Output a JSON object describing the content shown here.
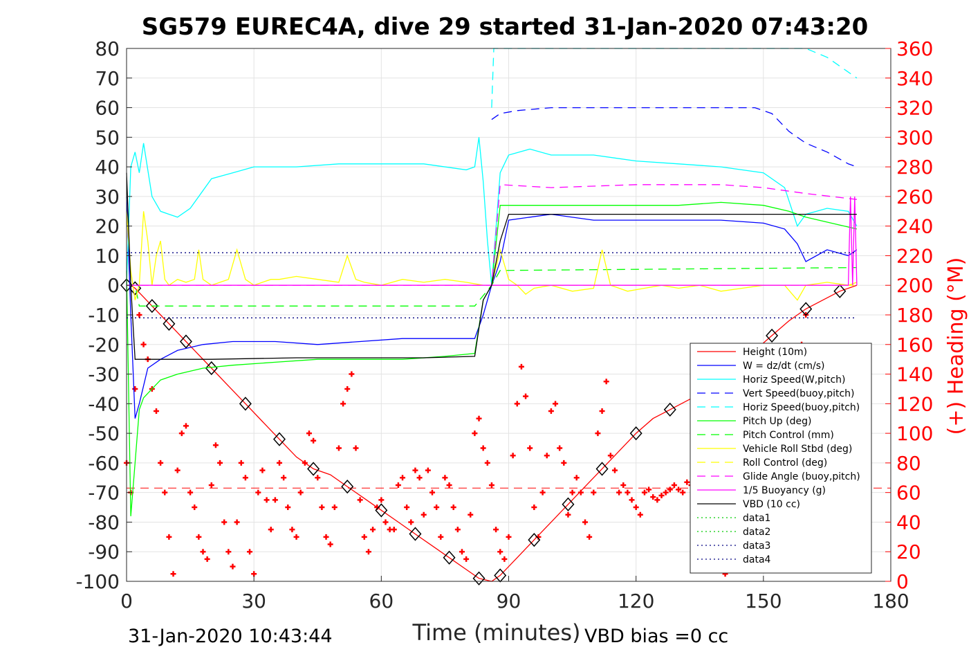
{
  "chart_data": {
    "type": "line",
    "title": "SG579 EUREC4A, dive 29 started 31-Jan-2020 07:43:20",
    "xlabel": "Time (minutes)",
    "ylabel": "",
    "y2label": "(+) Heading (°M)",
    "xlim": [
      0,
      180
    ],
    "ylim": [
      -100,
      80
    ],
    "y2lim": [
      0,
      360
    ],
    "xticks": [
      "0",
      "30",
      "60",
      "90",
      "120",
      "150",
      "180"
    ],
    "yticks": [
      "80",
      "70",
      "60",
      "50",
      "40",
      "30",
      "20",
      "10",
      "0",
      "-10",
      "-20",
      "-30",
      "-40",
      "-50",
      "-60",
      "-70",
      "-80",
      "-90",
      "-100"
    ],
    "y2ticks": [
      "360",
      "340",
      "320",
      "300",
      "280",
      "260",
      "240",
      "220",
      "200",
      "180",
      "160",
      "140",
      "120",
      "100",
      "80",
      "60",
      "40",
      "20",
      "0"
    ],
    "grid": true,
    "legend_position": "lower-right",
    "footer_left": "31-Jan-2020 10:43:44",
    "footer_right": "VBD bias =0 cc",
    "colors": {
      "height": "#ff0000",
      "w": "#0000ff",
      "horiz_speed": "#00ffff",
      "pitch": "#00ff00",
      "roll": "#ffff00",
      "glide": "#ff00ff",
      "vbd": "#000000",
      "heading": "#ff0000",
      "data3": "#000080"
    },
    "series": [
      {
        "name": "Height (10m)",
        "color": "#ff0000",
        "style": "solid",
        "marker": "diamond",
        "x": [
          0,
          1,
          2,
          4,
          6,
          8,
          10,
          12,
          14,
          16,
          20,
          24,
          28,
          32,
          36,
          40,
          44,
          48,
          52,
          56,
          60,
          64,
          68,
          72,
          76,
          80,
          83,
          86,
          88,
          92,
          96,
          100,
          104,
          108,
          112,
          116,
          120,
          124,
          128,
          132,
          136,
          140,
          144,
          148,
          152,
          156,
          160,
          164,
          168,
          172
        ],
        "y": [
          0,
          0,
          -1,
          -4,
          -7,
          -10,
          -13,
          -16,
          -19,
          -22,
          -28,
          -34,
          -40,
          -46,
          -52,
          -58,
          -62,
          -64,
          -68,
          -72,
          -76,
          -80,
          -84,
          -88,
          -92,
          -96,
          -99,
          -100,
          -98,
          -92,
          -86,
          -80,
          -74,
          -68,
          -62,
          -56,
          -50,
          -45,
          -42,
          -39,
          -36,
          -32,
          -27,
          -22,
          -17,
          -12,
          -8,
          -5,
          -2,
          0
        ]
      },
      {
        "name": "W = dz/dt (cm/s)",
        "color": "#0000ff",
        "style": "solid",
        "x": [
          0,
          1,
          2,
          3,
          5,
          8,
          12,
          18,
          25,
          35,
          45,
          55,
          65,
          75,
          82,
          84,
          86,
          88,
          90,
          95,
          100,
          110,
          120,
          130,
          140,
          150,
          155,
          158,
          160,
          165,
          170,
          172
        ],
        "y": [
          30,
          -10,
          -45,
          -40,
          -28,
          -25,
          -22,
          -20,
          -19,
          -19,
          -20,
          -19,
          -18,
          -18,
          -18,
          -10,
          0,
          8,
          22,
          23,
          24,
          22,
          22,
          22,
          22,
          21,
          19,
          14,
          8,
          12,
          10,
          12
        ]
      },
      {
        "name": "Horiz Speed(W,pitch)",
        "color": "#00ffff",
        "style": "solid",
        "x": [
          0,
          1,
          2,
          3,
          4,
          6,
          8,
          10,
          12,
          15,
          20,
          25,
          30,
          40,
          50,
          60,
          70,
          80,
          82,
          83,
          84,
          85,
          86,
          88,
          90,
          95,
          100,
          110,
          120,
          130,
          140,
          150,
          155,
          158,
          160,
          165,
          170,
          172
        ],
        "y": [
          0,
          40,
          45,
          38,
          48,
          30,
          25,
          24,
          23,
          26,
          36,
          38,
          40,
          40,
          41,
          41,
          41,
          39,
          40,
          50,
          35,
          15,
          0,
          38,
          44,
          46,
          44,
          44,
          42,
          41,
          40,
          38,
          33,
          20,
          24,
          26,
          25,
          20
        ]
      },
      {
        "name": "Vert Speed(buoy,pitch)",
        "color": "#0000ff",
        "style": "dashed",
        "x": [
          86,
          88,
          92,
          100,
          110,
          120,
          130,
          140,
          148,
          152,
          156,
          160,
          165,
          170,
          172
        ],
        "y": [
          56,
          58,
          59,
          60,
          60,
          60,
          60,
          60,
          60,
          58,
          52,
          48,
          45,
          41,
          40
        ]
      },
      {
        "name": "Horiz Speed(buoy,pitch)",
        "color": "#00ffff",
        "style": "dashed",
        "x": [
          86,
          86.5,
          87,
          160,
          165,
          170,
          172
        ],
        "y": [
          60,
          80,
          80,
          80,
          77,
          72,
          70
        ]
      },
      {
        "name": "Pitch Up (deg)",
        "color": "#00ff00",
        "style": "solid",
        "x": [
          0,
          1,
          2,
          3,
          4,
          6,
          8,
          12,
          18,
          25,
          35,
          45,
          55,
          65,
          75,
          82,
          84,
          86,
          88,
          92,
          100,
          110,
          120,
          130,
          140,
          150,
          156,
          160,
          166,
          172
        ],
        "y": [
          5,
          -78,
          -60,
          -42,
          -38,
          -35,
          -32,
          -30,
          -28,
          -27,
          -26,
          -25,
          -25,
          -25,
          -24,
          -23,
          -5,
          0,
          27,
          27,
          27,
          27,
          27,
          27,
          28,
          27,
          25,
          23,
          21,
          19
        ]
      },
      {
        "name": "Pitch Control (mm)",
        "color": "#00ff00",
        "style": "dashed",
        "x": [
          0,
          2,
          3,
          82,
          86,
          88,
          172
        ],
        "y": [
          0,
          0,
          -7,
          -7,
          0,
          5,
          6
        ]
      },
      {
        "name": "Vehicle Roll Stbd (deg)",
        "color": "#ffff00",
        "style": "solid",
        "x": [
          0,
          1,
          2,
          3,
          4,
          5,
          6,
          7,
          8,
          9,
          10,
          12,
          14,
          16,
          17,
          18,
          20,
          22,
          24,
          26,
          28,
          30,
          32,
          34,
          36,
          40,
          45,
          50,
          52,
          54,
          56,
          60,
          65,
          70,
          75,
          80,
          84,
          86,
          88,
          90,
          92,
          94,
          96,
          100,
          105,
          110,
          112,
          114,
          118,
          122,
          126,
          130,
          135,
          140,
          145,
          150,
          155,
          158,
          160,
          165,
          170,
          172
        ],
        "y": [
          25,
          5,
          -5,
          0,
          25,
          15,
          0,
          10,
          15,
          2,
          0,
          2,
          1,
          2,
          12,
          2,
          0,
          1,
          2,
          12,
          2,
          0,
          1,
          2,
          2,
          3,
          2,
          1,
          10,
          2,
          1,
          0,
          2,
          1,
          2,
          1,
          0,
          0,
          12,
          2,
          0,
          -3,
          -1,
          0,
          -2,
          -1,
          12,
          0,
          -2,
          -1,
          0,
          -1,
          0,
          -2,
          -1,
          0,
          0,
          -5,
          0,
          1,
          0,
          1
        ]
      },
      {
        "name": "Roll Control (deg)",
        "color": "#ffff00",
        "style": "dashed",
        "x": [
          0,
          172
        ],
        "y": [
          0,
          0
        ]
      },
      {
        "name": "Glide Angle (buoy,pitch)",
        "color": "#ff00ff",
        "style": "dashed",
        "x": [
          0,
          2,
          3,
          82,
          86,
          88,
          100,
          120,
          140,
          150,
          160,
          172
        ],
        "y": [
          0,
          0,
          0,
          0,
          0,
          34,
          33,
          34,
          34,
          33,
          31,
          29
        ]
      },
      {
        "name": "1/5 Buoyancy (g)",
        "color": "#ff00ff",
        "style": "solid",
        "x": [
          0,
          2,
          3,
          82,
          86,
          88,
          170,
          170.5,
          171,
          171.5,
          172
        ],
        "y": [
          0,
          0,
          0,
          0,
          0,
          0,
          0,
          30,
          0,
          30,
          0
        ]
      },
      {
        "name": "VBD (10 cc)",
        "color": "#000000",
        "style": "solid",
        "x": [
          0,
          1,
          2,
          3,
          5,
          10,
          20,
          40,
          60,
          70,
          82,
          84,
          86,
          88,
          90,
          172
        ],
        "y": [
          38,
          0,
          -25,
          -25,
          -25,
          -25,
          -25,
          -24.5,
          -24.5,
          -24.5,
          -24,
          -5,
          0,
          15,
          24,
          24
        ]
      },
      {
        "name": "data1",
        "color": "#00cc00",
        "style": "dotted",
        "x": [],
        "y": []
      },
      {
        "name": "data2",
        "color": "#00cc00",
        "style": "dotted",
        "x": [],
        "y": []
      },
      {
        "name": "data3",
        "color": "#000080",
        "style": "dotted",
        "x": [
          0,
          172
        ],
        "y": [
          11,
          11
        ]
      },
      {
        "name": "data4",
        "color": "#000080",
        "style": "dotted",
        "x": [
          0,
          172
        ],
        "y": [
          -11,
          -11
        ]
      }
    ],
    "extra_series": [
      {
        "name": "Heading",
        "color": "#ff0000",
        "style": "markers",
        "marker": "plus",
        "axis": "right",
        "x": [
          0,
          1,
          2,
          3,
          4,
          5,
          6,
          7,
          8,
          9,
          10,
          11,
          12,
          13,
          14,
          15,
          16,
          17,
          18,
          19,
          20,
          21,
          22,
          23,
          24,
          25,
          26,
          27,
          28,
          29,
          30,
          31,
          32,
          33,
          34,
          35,
          36,
          37,
          38,
          39,
          40,
          41,
          42,
          43,
          44,
          45,
          46,
          47,
          48,
          49,
          50,
          51,
          52,
          53,
          54,
          55,
          56,
          57,
          58,
          59,
          60,
          61,
          62,
          63,
          64,
          65,
          66,
          67,
          68,
          69,
          70,
          71,
          72,
          73,
          74,
          75,
          76,
          77,
          78,
          79,
          80,
          81,
          82,
          83,
          84,
          85,
          86,
          87,
          88,
          89,
          90,
          91,
          92,
          93,
          94,
          95,
          96,
          97,
          98,
          99,
          100,
          101,
          102,
          103,
          104,
          105,
          106,
          107,
          108,
          109,
          110,
          111,
          112,
          113,
          114,
          115,
          116,
          117,
          118,
          119,
          120,
          121,
          122,
          123,
          124,
          125,
          126,
          127,
          128,
          129,
          130,
          131,
          132,
          133,
          134,
          135,
          136,
          137,
          138,
          139,
          140,
          141,
          142,
          143,
          144,
          145,
          146,
          147,
          148,
          149,
          150,
          151,
          152,
          153,
          154,
          155,
          156,
          157,
          158,
          159,
          160
        ],
        "y": [
          80,
          60,
          130,
          180,
          160,
          150,
          130,
          115,
          80,
          60,
          30,
          5,
          75,
          100,
          105,
          60,
          50,
          30,
          20,
          15,
          65,
          92,
          80,
          40,
          20,
          10,
          40,
          80,
          70,
          20,
          5,
          60,
          75,
          55,
          35,
          55,
          80,
          70,
          50,
          35,
          30,
          60,
          80,
          100,
          95,
          70,
          50,
          30,
          25,
          50,
          90,
          120,
          130,
          140,
          90,
          55,
          30,
          20,
          35,
          50,
          55,
          40,
          35,
          35,
          65,
          70,
          50,
          40,
          75,
          70,
          45,
          75,
          60,
          50,
          30,
          70,
          65,
          50,
          35,
          20,
          15,
          45,
          100,
          110,
          90,
          80,
          65,
          35,
          20,
          15,
          30,
          85,
          120,
          145,
          125,
          90,
          50,
          30,
          60,
          85,
          115,
          120,
          90,
          80,
          45,
          60,
          70,
          60,
          40,
          30,
          60,
          100,
          115,
          135,
          85,
          75,
          60,
          65,
          60,
          55,
          50,
          45,
          60,
          62,
          57,
          55,
          58,
          60,
          62,
          65,
          62,
          60,
          67,
          65,
          62,
          60,
          58,
          65,
          62,
          60,
          58,
          5,
          60,
          55,
          65,
          62,
          60,
          58,
          58,
          62,
          62,
          60,
          55,
          58,
          60,
          50,
          55,
          60,
          62,
          160,
          180
        ]
      }
    ],
    "reference_lines": [
      {
        "color": "#ff0000",
        "style": "dashed",
        "axis": "left",
        "y": -68.5
      }
    ]
  }
}
